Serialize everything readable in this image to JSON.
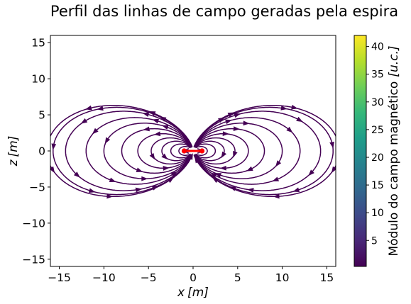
{
  "chart_data": {
    "type": "streamplot",
    "title": "Perfil das linhas de campo geradas pela espira",
    "xlabel_var": "x",
    "xlabel_unit": "[m]",
    "ylabel_var": "z",
    "ylabel_unit": "[m]",
    "xlim": [
      -16,
      16
    ],
    "ylim": [
      -16,
      16
    ],
    "xticks": [
      -15,
      -10,
      -5,
      0,
      5,
      10,
      15
    ],
    "xtick_labels": [
      "−15",
      "−10",
      "−5",
      "0",
      "5",
      "10",
      "15"
    ],
    "yticks": [
      -15,
      -10,
      -5,
      0,
      5,
      10,
      15
    ],
    "ytick_labels": [
      "−15",
      "−10",
      "−5",
      "0",
      "5",
      "10",
      "15"
    ],
    "colorbar": {
      "label": "Módulo do campo magnético [u.c.]",
      "label_text": "Módulo do campo magnético",
      "label_unit": "[u.c.]",
      "ticks": [
        5,
        10,
        15,
        20,
        25,
        30,
        35,
        40
      ],
      "range": [
        0.3,
        42
      ],
      "colormap": "viridis",
      "colors": [
        "#440154",
        "#482777",
        "#3e4989",
        "#31688e",
        "#26828e",
        "#1f9e89",
        "#35b779",
        "#6ece58",
        "#b5de2b",
        "#fde725"
      ]
    },
    "loop": {
      "x_from": -1,
      "x_to": 1,
      "z": 0,
      "color": "#ff0000"
    },
    "streamline_color": "#440154",
    "field_model": "magnetic dipole (current loop of radius 1 at the origin, axis along z, field pointing +z at center)",
    "grid": false
  }
}
